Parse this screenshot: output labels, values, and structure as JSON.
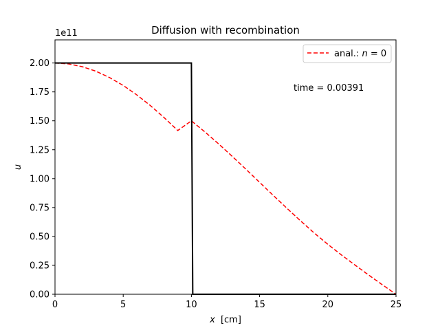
{
  "chart_data": {
    "type": "line",
    "title": "Diffusion with recombination",
    "xlabel_var": "x",
    "xlabel_unit": "[cm]",
    "ylabel": "u",
    "y_offset_text": "1e11",
    "xlim": [
      0,
      25
    ],
    "ylim": [
      0,
      2.2
    ],
    "x_ticks": [
      0,
      5,
      10,
      15,
      20,
      25
    ],
    "x_tick_labels": [
      "0",
      "5",
      "10",
      "15",
      "20",
      "25"
    ],
    "y_ticks": [
      0,
      0.25,
      0.5,
      0.75,
      1.0,
      1.25,
      1.5,
      1.75,
      2.0
    ],
    "y_tick_labels": [
      "0.00",
      "0.25",
      "0.50",
      "0.75",
      "1.00",
      "1.25",
      "1.50",
      "1.75",
      "2.00"
    ],
    "annotation": "time = 0.00391",
    "grid": false,
    "legend_position": "top-right",
    "series": [
      {
        "name": "anal.: n = 0",
        "legend_prefix": "anal.: ",
        "legend_var": "n",
        "legend_suffix": " = 0",
        "style": "dashed",
        "color": "#ff0000",
        "x": [
          0,
          1,
          2,
          3,
          4,
          5,
          6,
          7,
          8,
          9,
          10,
          11,
          12,
          13,
          14,
          15,
          16,
          17,
          18,
          19,
          20,
          21,
          22,
          23,
          24,
          25
        ],
        "y": [
          2.0,
          1.992,
          1.968,
          1.929,
          1.874,
          1.806,
          1.724,
          1.631,
          1.528,
          1.416,
          1.5,
          1.403,
          1.3,
          1.192,
          1.081,
          0.968,
          0.855,
          0.744,
          0.635,
          0.53,
          0.432,
          0.34,
          0.252,
          0.166,
          0.082,
          0.0
        ]
      },
      {
        "style": "solid",
        "color": "#000000",
        "x": [
          0,
          10.0,
          10.1,
          25
        ],
        "y": [
          2.0,
          2.0,
          0.0,
          0.0
        ]
      }
    ]
  }
}
